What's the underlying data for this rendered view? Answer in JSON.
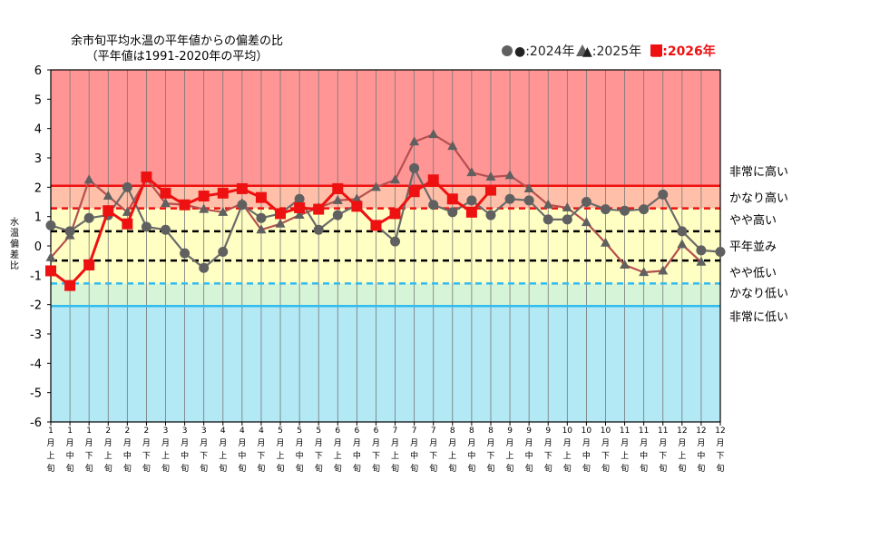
{
  "chart_data": {
    "type": "line",
    "title": "余市旬平均水温の平年値からの偏差の比",
    "subtitle": "（平年値は1991-2020年の平均）",
    "xlabel": "",
    "ylabel": "水温偏差比",
    "ylim": [
      -6,
      6
    ],
    "y_ticks": [
      "6",
      "5",
      "4",
      "3",
      "2",
      "1",
      "0",
      "-1",
      "-2",
      "-3",
      "-4",
      "-5",
      "-6"
    ],
    "grid": true,
    "legend_position": "top-right",
    "categories": [
      [
        "1",
        "月",
        "上",
        "旬"
      ],
      [
        "1",
        "月",
        "中",
        "旬"
      ],
      [
        "1",
        "月",
        "下",
        "旬"
      ],
      [
        "2",
        "月",
        "上",
        "旬"
      ],
      [
        "2",
        "月",
        "中",
        "旬"
      ],
      [
        "2",
        "月",
        "下",
        "旬"
      ],
      [
        "3",
        "月",
        "上",
        "旬"
      ],
      [
        "3",
        "月",
        "中",
        "旬"
      ],
      [
        "3",
        "月",
        "下",
        "旬"
      ],
      [
        "4",
        "月",
        "上",
        "旬"
      ],
      [
        "4",
        "月",
        "中",
        "旬"
      ],
      [
        "4",
        "月",
        "下",
        "旬"
      ],
      [
        "5",
        "月",
        "上",
        "旬"
      ],
      [
        "5",
        "月",
        "中",
        "旬"
      ],
      [
        "5",
        "月",
        "下",
        "旬"
      ],
      [
        "6",
        "月",
        "上",
        "旬"
      ],
      [
        "6",
        "月",
        "中",
        "旬"
      ],
      [
        "6",
        "月",
        "下",
        "旬"
      ],
      [
        "7",
        "月",
        "上",
        "旬"
      ],
      [
        "7",
        "月",
        "中",
        "旬"
      ],
      [
        "7",
        "月",
        "下",
        "旬"
      ],
      [
        "8",
        "月",
        "上",
        "旬"
      ],
      [
        "8",
        "月",
        "中",
        "旬"
      ],
      [
        "8",
        "月",
        "下",
        "旬"
      ],
      [
        "9",
        "月",
        "上",
        "旬"
      ],
      [
        "9",
        "月",
        "中",
        "旬"
      ],
      [
        "9",
        "月",
        "下",
        "旬"
      ],
      [
        "10",
        "月",
        "上",
        "旬"
      ],
      [
        "10",
        "月",
        "中",
        "旬"
      ],
      [
        "10",
        "月",
        "下",
        "旬"
      ],
      [
        "11",
        "月",
        "上",
        "旬"
      ],
      [
        "11",
        "月",
        "中",
        "旬"
      ],
      [
        "11",
        "月",
        "下",
        "旬"
      ],
      [
        "12",
        "月",
        "上",
        "旬"
      ],
      [
        "12",
        "月",
        "中",
        "旬"
      ],
      [
        "12",
        "月",
        "下",
        "旬"
      ]
    ],
    "series": [
      {
        "name": "●:2024年",
        "marker": "circle",
        "color": "#606060",
        "values": [
          0.7,
          0.5,
          0.95,
          1.05,
          2.0,
          0.65,
          0.55,
          -0.25,
          -0.75,
          -0.2,
          1.4,
          0.95,
          1.1,
          1.6,
          0.55,
          1.05,
          1.4,
          0.7,
          0.15,
          2.65,
          1.4,
          1.15,
          1.55,
          1.05,
          1.6,
          1.55,
          0.9,
          0.9,
          1.5,
          1.25,
          1.2,
          1.25,
          1.75,
          0.5,
          -0.15,
          -0.2
        ]
      },
      {
        "name": "▲:2025年",
        "marker": "triangle",
        "color": "#606060",
        "values": [
          -0.4,
          0.35,
          2.25,
          1.7,
          1.15,
          2.3,
          1.45,
          1.4,
          1.25,
          1.15,
          1.45,
          0.55,
          0.75,
          1.05,
          1.3,
          1.55,
          1.6,
          2.0,
          2.25,
          3.55,
          3.8,
          3.4,
          2.5,
          2.35,
          2.4,
          1.95,
          1.4,
          1.3,
          0.8,
          0.1,
          -0.65,
          -0.9,
          -0.85,
          0.05,
          -0.55,
          null
        ]
      },
      {
        "name": "■:2026年",
        "marker": "square",
        "color": "#ee1111",
        "values": [
          -0.85,
          -1.35,
          -0.65,
          1.2,
          0.75,
          2.35,
          1.8,
          1.4,
          1.7,
          1.8,
          1.95,
          1.65,
          1.1,
          1.3,
          1.25,
          1.95,
          1.35,
          0.7,
          1.1,
          1.85,
          2.25,
          1.6,
          1.15,
          1.9,
          null,
          null,
          null,
          null,
          null,
          null,
          null,
          null,
          null,
          null,
          null,
          null
        ]
      }
    ],
    "bands": [
      {
        "from": 2.05,
        "to": 6,
        "color": "#ff9595"
      },
      {
        "from": 1.28,
        "to": 2.05,
        "color": "#ffbfa8"
      },
      {
        "from": 0.5,
        "to": 1.28,
        "color": "#ffffc4"
      },
      {
        "from": -0.5,
        "to": 0.5,
        "color": "#ffffc4"
      },
      {
        "from": -1.28,
        "to": -0.5,
        "color": "#ffffc4"
      },
      {
        "from": -2.05,
        "to": -1.28,
        "color": "#d6f5d8"
      },
      {
        "from": -6,
        "to": -2.05,
        "color": "#b3e8f5"
      }
    ],
    "thresholds": [
      {
        "value": 2.05,
        "color": "#ee1111",
        "style": "solid"
      },
      {
        "value": 1.28,
        "color": "#ee1111",
        "style": "dashed"
      },
      {
        "value": 0.5,
        "color": "#000000",
        "style": "dashed"
      },
      {
        "value": -0.5,
        "color": "#000000",
        "style": "dashed"
      },
      {
        "value": -1.28,
        "color": "#33bbee",
        "style": "dashed"
      },
      {
        "value": -2.05,
        "color": "#33bbee",
        "style": "solid"
      }
    ],
    "category_labels": [
      {
        "text": "非常に高い",
        "value": 2.55
      },
      {
        "text": "かなり高い",
        "value": 1.65
      },
      {
        "text": "やや高い",
        "value": 0.9
      },
      {
        "text": "平年並み",
        "value": 0.0
      },
      {
        "text": "やや低い",
        "value": -0.9
      },
      {
        "text": "かなり低い",
        "value": -1.6
      },
      {
        "text": "非常に低い",
        "value": -2.4
      }
    ]
  }
}
